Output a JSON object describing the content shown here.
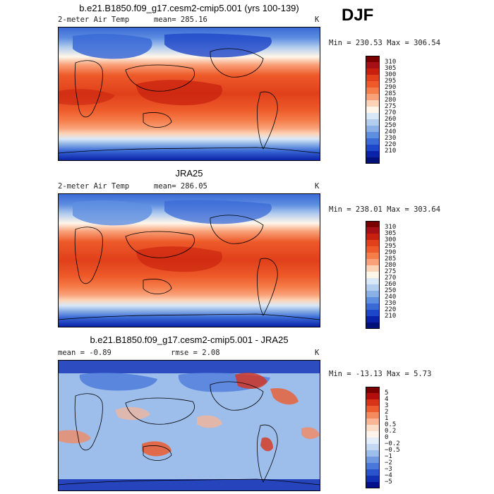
{
  "season": "DJF",
  "panels": [
    {
      "title": "b.e21.B1850.f09_g17.cesm2-cmip5.001 (yrs 100-139)",
      "left_label": "2-meter Air Temp",
      "center_label": "mean= 285.16",
      "units": "K",
      "minmax": "Min = 230.53 Max = 306.54",
      "colorbar_labels": [
        "310",
        "305",
        "300",
        "295",
        "290",
        "285",
        "280",
        "275",
        "270",
        "260",
        "250",
        "240",
        "230",
        "220",
        "210"
      ]
    },
    {
      "title": "JRA25",
      "left_label": "2-meter Air Temp",
      "center_label": "mean= 286.05",
      "units": "K",
      "minmax": "Min = 238.01 Max = 303.64",
      "colorbar_labels": [
        "310",
        "305",
        "300",
        "295",
        "290",
        "285",
        "280",
        "275",
        "270",
        "260",
        "250",
        "240",
        "230",
        "220",
        "210"
      ]
    },
    {
      "title": "b.e21.B1850.f09_g17.cesm2-cmip5.001 - JRA25",
      "left_label": "mean =   -0.89",
      "center_label": "rmse =    2.08",
      "units": "K",
      "minmax": "Min = -13.13 Max =   5.73",
      "colorbar_labels": [
        "5",
        "4",
        "3",
        "2",
        "1",
        "0.5",
        "0.2",
        "0",
        "−0.2",
        "−0.5",
        "−1",
        "−2",
        "−3",
        "−4",
        "−5"
      ]
    }
  ],
  "colors": {
    "temp": [
      "#7a0000",
      "#a50f15",
      "#c8200e",
      "#e0401a",
      "#ee5a2a",
      "#f57d4a",
      "#f9a27a",
      "#fcd3b6",
      "#fff6ea",
      "#d9e8f7",
      "#b3cdee",
      "#8bb0e6",
      "#5e8ee0",
      "#3a6ad6",
      "#1e46c8",
      "#0a22a8",
      "#00127a"
    ],
    "diff": [
      "#7a0000",
      "#b30e0e",
      "#d8341a",
      "#ec5c2e",
      "#f58a5e",
      "#f9b594",
      "#fddcc8",
      "#fff4ec",
      "#e4eefa",
      "#c5d8f3",
      "#9dbdeb",
      "#7099e2",
      "#4a78da",
      "#2a54cc",
      "#1230b4",
      "#050f8a"
    ]
  }
}
